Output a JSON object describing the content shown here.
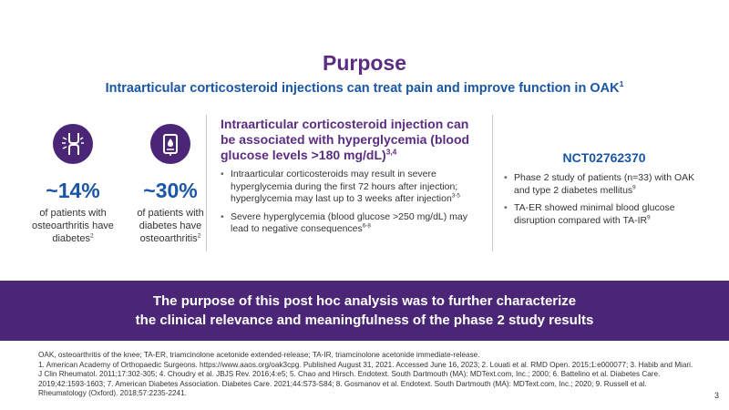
{
  "slide": {
    "title": "Purpose",
    "subtitle": "Intraarticular corticosteroid injections can treat pain and improve function in OAK",
    "subtitle_ref": "1"
  },
  "stats": [
    {
      "icon": "knee-joint-icon",
      "value": "~14%",
      "desc": "of patients with osteoarthritis have diabetes",
      "ref": "2"
    },
    {
      "icon": "glucose-meter-icon",
      "value": "~30%",
      "desc": "of patients with diabetes have osteoarthritis",
      "ref": "2"
    }
  ],
  "middle": {
    "heading": "Intraarticular corticosteroid injection can be associated with hyperglycemia (blood glucose levels >180 mg/dL)",
    "heading_ref": "3,4",
    "bullets": [
      {
        "text": "Intraarticular corticosteroids may result in severe hyperglycemia during the first 72 hours after injection; hyperglycemia may last up to 3 weeks after injection",
        "ref": "3-5"
      },
      {
        "text": "Severe hyperglycemia (blood glucose >250 mg/dL) may lead to negative consequences",
        "ref": "6-8"
      }
    ]
  },
  "right": {
    "heading": "NCT02762370",
    "bullets": [
      {
        "text": "Phase 2 study of patients (n=33) with OAK and type 2 diabetes mellitus",
        "ref": "9"
      },
      {
        "text": "TA-ER showed minimal blood glucose disruption compared with TA-IR",
        "ref": "9"
      }
    ]
  },
  "banner": {
    "line1": "The purpose of this post hoc analysis was to further characterize",
    "line2": "the clinical relevance and meaningfulness of the phase 2 study results"
  },
  "footnotes": {
    "abbreviations": "OAK, osteoarthritis of the knee; TA-ER, triamcinolone acetonide extended-release; TA-IR, triamcinolone acetonide immediate-release.",
    "references": "1. American Academy of Orthopaedic Surgeons. https://www.aaos.org/oak3cpg. Published August 31, 2021. Accessed June 16, 2023; 2. Louati et al. RMD Open. 2015;1:e000077; 3. Habib and Miari. J Clin Rheumatol. 2011;17:302-305; 4. Choudry et al. JBJS Rev. 2016;4:e5; 5. Chao and Hirsch. Endotext. South Dartmouth (MA): MDText.com, Inc.; 2000; 6. Battelino et al. Diabetes Care. 2019;42:1593-1603; 7. American Diabetes Association. Diabetes Care. 2021;44:S73-S84; 8. Gosmanov et al. Endotext. South Dartmouth (MA): MDText.com, Inc.; 2020; 9. Russell et al. Rheumatology (Oxford). 2018;57:2235-2241."
  },
  "page_number": "3",
  "colors": {
    "title": "#5b2d82",
    "accent_blue": "#1a56a6",
    "banner": "#4b2676"
  }
}
